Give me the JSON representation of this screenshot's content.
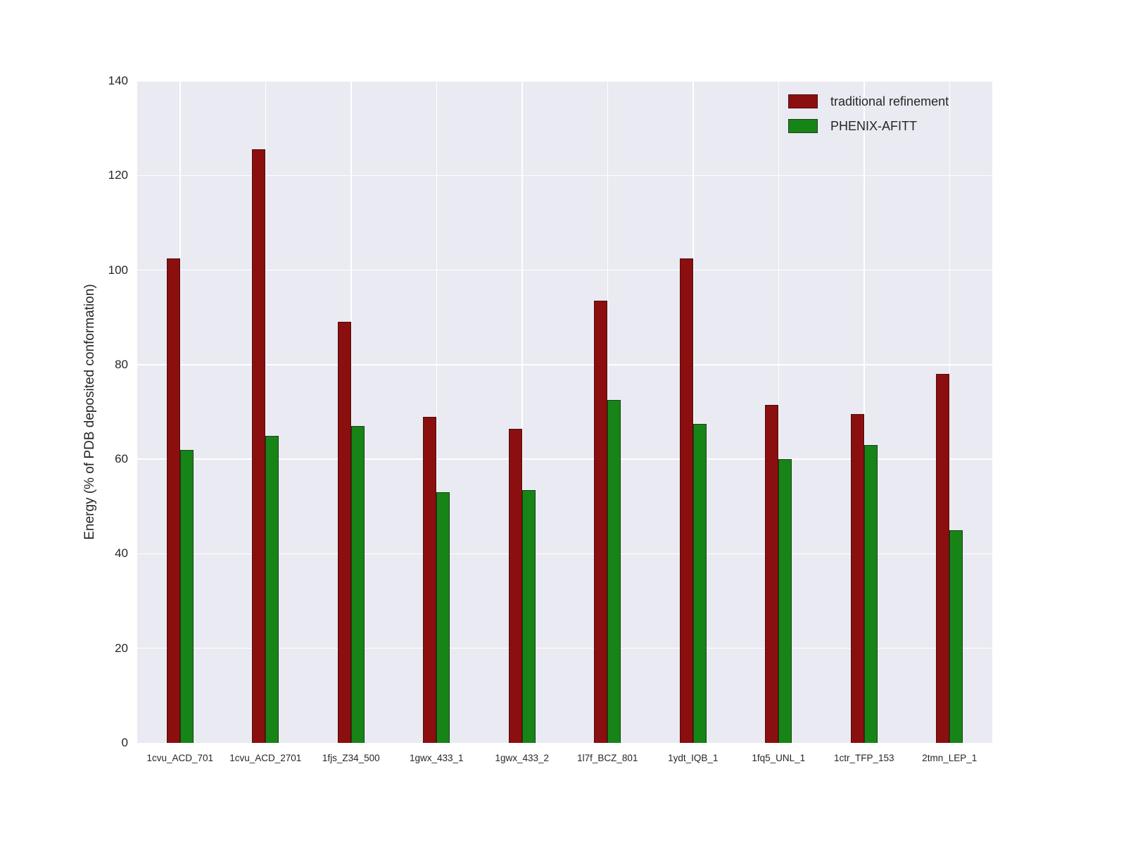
{
  "chart_data": {
    "type": "bar",
    "title": "",
    "xlabel": "",
    "ylabel": "Energy (% of PDB deposited conformation)",
    "ylim": [
      0,
      140
    ],
    "yticks": [
      0,
      20,
      40,
      60,
      80,
      100,
      120,
      140
    ],
    "grid": true,
    "legend_position": "upper right",
    "categories": [
      "1cvu_ACD_701",
      "1cvu_ACD_2701",
      "1fjs_Z34_500",
      "1gwx_433_1",
      "1gwx_433_2",
      "1l7f_BCZ_801",
      "1ydt_IQB_1",
      "1fq5_UNL_1",
      "1ctr_TFP_153",
      "2tmn_LEP_1"
    ],
    "series": [
      {
        "name": "traditional refinement",
        "color": "#8b0f0f",
        "values": [
          102.5,
          125.5,
          89,
          69,
          66.5,
          93.5,
          102.5,
          71.5,
          69.5,
          78
        ]
      },
      {
        "name": "PHENIX-AFITT",
        "color": "#178417",
        "values": [
          62,
          65,
          67,
          53,
          53.5,
          72.5,
          67.5,
          60,
          63,
          45
        ]
      }
    ],
    "colors": {
      "plot_background": "#eaeaf2",
      "grid": "#ffffff",
      "tick_label": "#262626"
    }
  }
}
